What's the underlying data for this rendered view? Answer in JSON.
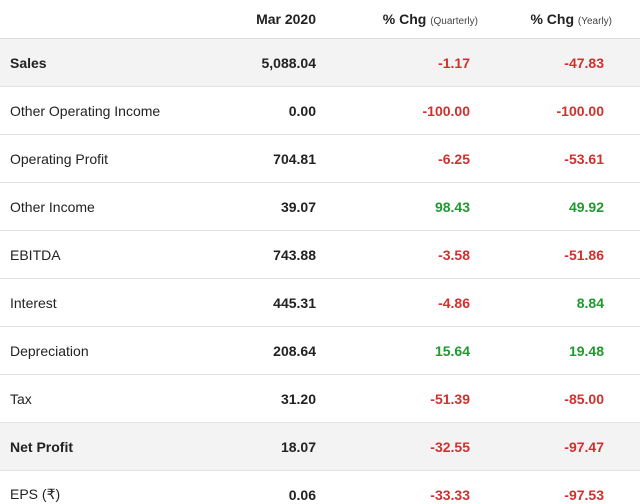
{
  "header": {
    "period": "Mar 2020",
    "q_chg": "% Chg",
    "q_note": "(Quarterly)",
    "y_chg": "% Chg",
    "y_note": "(Yearly)"
  },
  "table": {
    "rows": [
      [
        "Sales",
        "5,088.04",
        "-1.17",
        "-47.83"
      ],
      [
        "Other Operating Income",
        "0.00",
        "-100.00",
        "-100.00"
      ],
      [
        "Operating Profit",
        "704.81",
        "-6.25",
        "-53.61"
      ],
      [
        "Other Income",
        "39.07",
        "98.43",
        "49.92"
      ],
      [
        "EBITDA",
        "743.88",
        "-3.58",
        "-51.86"
      ],
      [
        "Interest",
        "445.31",
        "-4.86",
        "8.84"
      ],
      [
        "Depreciation",
        "208.64",
        "15.64",
        "19.48"
      ],
      [
        "Tax",
        "31.20",
        "-51.39",
        "-85.00"
      ],
      [
        "Net Profit",
        "18.07",
        "-32.55",
        "-97.47"
      ],
      [
        "EPS (₹)",
        "0.06",
        "-33.33",
        "-97.53"
      ]
    ]
  }
}
